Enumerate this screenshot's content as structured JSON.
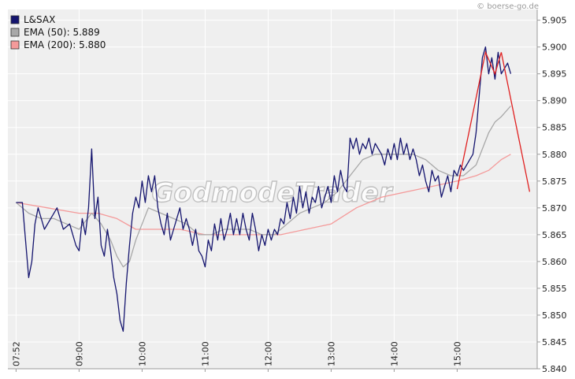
{
  "watermark": "GodmodeTrader",
  "credit": "© boerse-go.de",
  "colors": {
    "price": "#14146e",
    "ema50": "#a8a8a8",
    "ema200": "#f49a9a",
    "annotation": "#e02020",
    "plot_bg": "#efefef",
    "grid": "#ffffff"
  },
  "chart_data": {
    "type": "line",
    "title": "",
    "xlabel": "",
    "ylabel": "",
    "ylim": [
      5.84,
      5.907
    ],
    "y_ticks": [
      "5.840",
      "5.845",
      "5.850",
      "5.855",
      "5.860",
      "5.865",
      "5.870",
      "5.875",
      "5.880",
      "5.885",
      "5.890",
      "5.895",
      "5.900",
      "5.905"
    ],
    "x_ticks": [
      "07:52",
      "09:00",
      "10:00",
      "11:00",
      "12:00",
      "13:00",
      "14:00",
      "15:00"
    ],
    "legend": [
      {
        "label": "L&SAX",
        "color": "#14146e"
      },
      {
        "label": "EMA (50): 5.889",
        "color": "#a8a8a8"
      },
      {
        "label": "EMA (200): 5.880",
        "color": "#f49a9a"
      }
    ],
    "grid": true,
    "legend_position": "top-left",
    "series": [
      {
        "name": "L&SAX",
        "points": [
          [
            0,
            5.871
          ],
          [
            0.1,
            5.871
          ],
          [
            0.15,
            5.864
          ],
          [
            0.2,
            5.857
          ],
          [
            0.25,
            5.86
          ],
          [
            0.3,
            5.867
          ],
          [
            0.35,
            5.87
          ],
          [
            0.45,
            5.866
          ],
          [
            0.55,
            5.868
          ],
          [
            0.65,
            5.87
          ],
          [
            0.75,
            5.866
          ],
          [
            0.85,
            5.867
          ],
          [
            0.95,
            5.863
          ],
          [
            1.0,
            5.862
          ],
          [
            1.05,
            5.868
          ],
          [
            1.1,
            5.865
          ],
          [
            1.15,
            5.87
          ],
          [
            1.2,
            5.881
          ],
          [
            1.25,
            5.868
          ],
          [
            1.3,
            5.872
          ],
          [
            1.35,
            5.863
          ],
          [
            1.4,
            5.861
          ],
          [
            1.45,
            5.866
          ],
          [
            1.5,
            5.862
          ],
          [
            1.55,
            5.857
          ],
          [
            1.6,
            5.854
          ],
          [
            1.65,
            5.849
          ],
          [
            1.7,
            5.847
          ],
          [
            1.75,
            5.856
          ],
          [
            1.8,
            5.863
          ],
          [
            1.85,
            5.869
          ],
          [
            1.9,
            5.872
          ],
          [
            1.95,
            5.87
          ],
          [
            2.0,
            5.875
          ],
          [
            2.05,
            5.871
          ],
          [
            2.1,
            5.876
          ],
          [
            2.15,
            5.873
          ],
          [
            2.2,
            5.876
          ],
          [
            2.25,
            5.87
          ],
          [
            2.3,
            5.867
          ],
          [
            2.35,
            5.865
          ],
          [
            2.4,
            5.869
          ],
          [
            2.45,
            5.864
          ],
          [
            2.5,
            5.866
          ],
          [
            2.55,
            5.868
          ],
          [
            2.6,
            5.87
          ],
          [
            2.65,
            5.866
          ],
          [
            2.7,
            5.868
          ],
          [
            2.75,
            5.866
          ],
          [
            2.8,
            5.863
          ],
          [
            2.85,
            5.866
          ],
          [
            2.9,
            5.862
          ],
          [
            2.95,
            5.861
          ],
          [
            3.0,
            5.859
          ],
          [
            3.05,
            5.864
          ],
          [
            3.1,
            5.862
          ],
          [
            3.15,
            5.867
          ],
          [
            3.2,
            5.864
          ],
          [
            3.25,
            5.868
          ],
          [
            3.3,
            5.864
          ],
          [
            3.35,
            5.866
          ],
          [
            3.4,
            5.869
          ],
          [
            3.45,
            5.865
          ],
          [
            3.5,
            5.868
          ],
          [
            3.55,
            5.865
          ],
          [
            3.6,
            5.869
          ],
          [
            3.65,
            5.866
          ],
          [
            3.7,
            5.864
          ],
          [
            3.75,
            5.869
          ],
          [
            3.8,
            5.866
          ],
          [
            3.85,
            5.862
          ],
          [
            3.9,
            5.865
          ],
          [
            3.95,
            5.863
          ],
          [
            4.0,
            5.866
          ],
          [
            4.05,
            5.864
          ],
          [
            4.1,
            5.866
          ],
          [
            4.15,
            5.865
          ],
          [
            4.2,
            5.868
          ],
          [
            4.25,
            5.867
          ],
          [
            4.3,
            5.871
          ],
          [
            4.35,
            5.868
          ],
          [
            4.4,
            5.872
          ],
          [
            4.45,
            5.869
          ],
          [
            4.5,
            5.874
          ],
          [
            4.55,
            5.87
          ],
          [
            4.6,
            5.873
          ],
          [
            4.65,
            5.869
          ],
          [
            4.7,
            5.872
          ],
          [
            4.75,
            5.871
          ],
          [
            4.8,
            5.874
          ],
          [
            4.85,
            5.87
          ],
          [
            4.9,
            5.872
          ],
          [
            4.95,
            5.874
          ],
          [
            5.0,
            5.871
          ],
          [
            5.05,
            5.876
          ],
          [
            5.1,
            5.873
          ],
          [
            5.15,
            5.877
          ],
          [
            5.2,
            5.874
          ],
          [
            5.25,
            5.873
          ],
          [
            5.3,
            5.883
          ],
          [
            5.35,
            5.881
          ],
          [
            5.4,
            5.883
          ],
          [
            5.45,
            5.88
          ],
          [
            5.5,
            5.882
          ],
          [
            5.55,
            5.881
          ],
          [
            5.6,
            5.883
          ],
          [
            5.65,
            5.88
          ],
          [
            5.7,
            5.882
          ],
          [
            5.75,
            5.881
          ],
          [
            5.8,
            5.88
          ],
          [
            5.85,
            5.878
          ],
          [
            5.9,
            5.881
          ],
          [
            5.95,
            5.879
          ],
          [
            6.0,
            5.882
          ],
          [
            6.05,
            5.879
          ],
          [
            6.1,
            5.883
          ],
          [
            6.15,
            5.88
          ],
          [
            6.2,
            5.882
          ],
          [
            6.25,
            5.879
          ],
          [
            6.3,
            5.881
          ],
          [
            6.35,
            5.879
          ],
          [
            6.4,
            5.876
          ],
          [
            6.45,
            5.878
          ],
          [
            6.5,
            5.875
          ],
          [
            6.55,
            5.873
          ],
          [
            6.6,
            5.877
          ],
          [
            6.65,
            5.875
          ],
          [
            6.7,
            5.876
          ],
          [
            6.75,
            5.872
          ],
          [
            6.8,
            5.874
          ],
          [
            6.85,
            5.876
          ],
          [
            6.9,
            5.873
          ],
          [
            6.95,
            5.877
          ],
          [
            7.0,
            5.876
          ],
          [
            7.05,
            5.878
          ],
          [
            7.1,
            5.877
          ],
          [
            7.15,
            5.878
          ],
          [
            7.2,
            5.879
          ],
          [
            7.25,
            5.88
          ],
          [
            7.3,
            5.884
          ],
          [
            7.35,
            5.891
          ],
          [
            7.4,
            5.898
          ],
          [
            7.45,
            5.9
          ],
          [
            7.5,
            5.895
          ],
          [
            7.55,
            5.898
          ],
          [
            7.6,
            5.894
          ],
          [
            7.65,
            5.899
          ],
          [
            7.7,
            5.895
          ],
          [
            7.75,
            5.896
          ],
          [
            7.8,
            5.897
          ],
          [
            7.85,
            5.895
          ]
        ]
      },
      {
        "name": "EMA (50): 5.889",
        "points": [
          [
            0,
            5.871
          ],
          [
            0.2,
            5.869
          ],
          [
            0.4,
            5.868
          ],
          [
            0.6,
            5.868
          ],
          [
            0.8,
            5.867
          ],
          [
            1.0,
            5.866
          ],
          [
            1.2,
            5.869
          ],
          [
            1.35,
            5.867
          ],
          [
            1.5,
            5.864
          ],
          [
            1.6,
            5.861
          ],
          [
            1.7,
            5.859
          ],
          [
            1.8,
            5.86
          ],
          [
            1.9,
            5.864
          ],
          [
            2.0,
            5.867
          ],
          [
            2.1,
            5.87
          ],
          [
            2.3,
            5.869
          ],
          [
            2.5,
            5.868
          ],
          [
            2.7,
            5.867
          ],
          [
            2.9,
            5.865
          ],
          [
            3.1,
            5.865
          ],
          [
            3.3,
            5.866
          ],
          [
            3.5,
            5.866
          ],
          [
            3.7,
            5.866
          ],
          [
            3.9,
            5.865
          ],
          [
            4.1,
            5.865
          ],
          [
            4.3,
            5.867
          ],
          [
            4.5,
            5.869
          ],
          [
            4.7,
            5.87
          ],
          [
            4.9,
            5.871
          ],
          [
            5.1,
            5.873
          ],
          [
            5.3,
            5.876
          ],
          [
            5.5,
            5.879
          ],
          [
            5.7,
            5.88
          ],
          [
            5.9,
            5.88
          ],
          [
            6.1,
            5.88
          ],
          [
            6.3,
            5.88
          ],
          [
            6.5,
            5.879
          ],
          [
            6.7,
            5.877
          ],
          [
            6.9,
            5.876
          ],
          [
            7.1,
            5.876
          ],
          [
            7.3,
            5.878
          ],
          [
            7.4,
            5.881
          ],
          [
            7.5,
            5.884
          ],
          [
            7.6,
            5.886
          ],
          [
            7.7,
            5.887
          ],
          [
            7.85,
            5.889
          ]
        ]
      },
      {
        "name": "EMA (200): 5.880",
        "points": [
          [
            0,
            5.871
          ],
          [
            0.5,
            5.87
          ],
          [
            1.0,
            5.869
          ],
          [
            1.3,
            5.869
          ],
          [
            1.6,
            5.868
          ],
          [
            1.9,
            5.866
          ],
          [
            2.2,
            5.866
          ],
          [
            2.6,
            5.866
          ],
          [
            3.0,
            5.865
          ],
          [
            3.4,
            5.865
          ],
          [
            3.8,
            5.865
          ],
          [
            4.2,
            5.865
          ],
          [
            4.6,
            5.866
          ],
          [
            5.0,
            5.867
          ],
          [
            5.4,
            5.87
          ],
          [
            5.8,
            5.872
          ],
          [
            6.2,
            5.873
          ],
          [
            6.6,
            5.874
          ],
          [
            7.0,
            5.875
          ],
          [
            7.3,
            5.876
          ],
          [
            7.5,
            5.877
          ],
          [
            7.7,
            5.879
          ],
          [
            7.85,
            5.88
          ]
        ]
      }
    ],
    "annotation_line": [
      [
        7.0,
        5.8735
      ],
      [
        7.45,
        5.899
      ],
      [
        7.6,
        5.895
      ],
      [
        7.7,
        5.899
      ],
      [
        8.15,
        5.873
      ]
    ]
  }
}
